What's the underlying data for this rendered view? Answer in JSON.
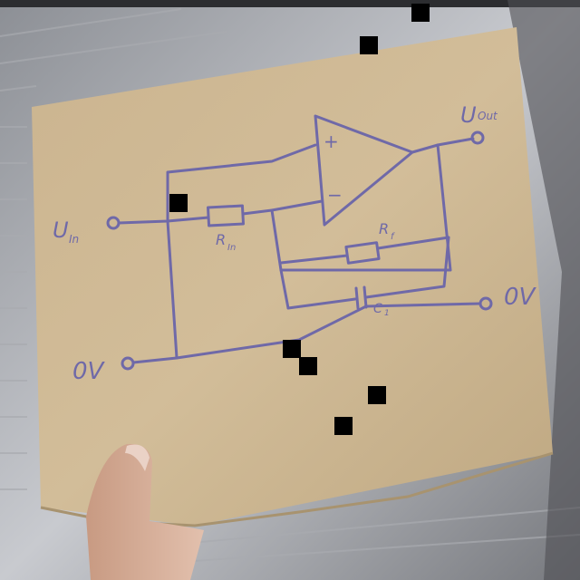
{
  "diagram": {
    "labels": {
      "u_in_main": "U",
      "u_in_sub": "In",
      "u_out_main": "U",
      "u_out_sub": "Out",
      "r_in_main": "R",
      "r_in_sub": "In",
      "r_f_main": "R",
      "r_f_sub": "f",
      "c_label": "C",
      "c_sub": "1",
      "plus": "+",
      "minus": "−",
      "ground_left": "0V",
      "ground_right": "0V"
    }
  },
  "colors": {
    "ink": "#6f69a8",
    "cardboard": "#c9b390",
    "background": "#6d6f74"
  }
}
